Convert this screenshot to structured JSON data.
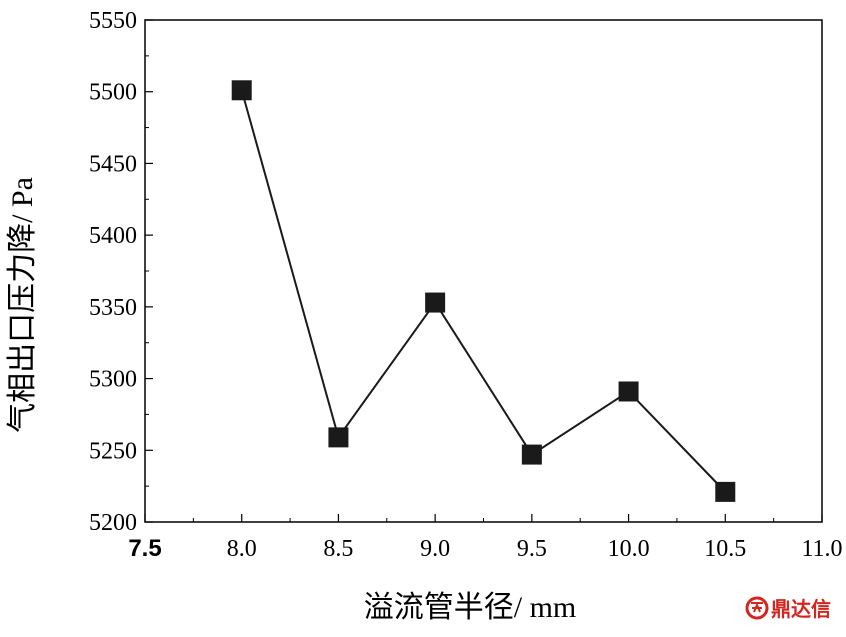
{
  "chart_data": {
    "type": "line",
    "title": "",
    "xlabel": "溢流管半径/ mm",
    "ylabel": "气相出口压力降/ Pa",
    "xlim": [
      7.5,
      11.0
    ],
    "ylim": [
      5200,
      5550
    ],
    "x_ticks": [
      "7.5",
      "8.0",
      "8.5",
      "9.0",
      "9.5",
      "10.0",
      "10.5",
      "11.0"
    ],
    "y_ticks": [
      "5200",
      "5250",
      "5300",
      "5350",
      "5400",
      "5450",
      "5500",
      "5550"
    ],
    "x": [
      8.0,
      8.5,
      9.0,
      9.5,
      10.0,
      10.5
    ],
    "y": [
      5501,
      5259,
      5353,
      5247,
      5291,
      5221
    ],
    "marker": "square",
    "color": "#1a1a1a",
    "grid": false,
    "legend": "none"
  },
  "watermark": {
    "logo_text": "鼎达信",
    "color": "#d6251f"
  }
}
